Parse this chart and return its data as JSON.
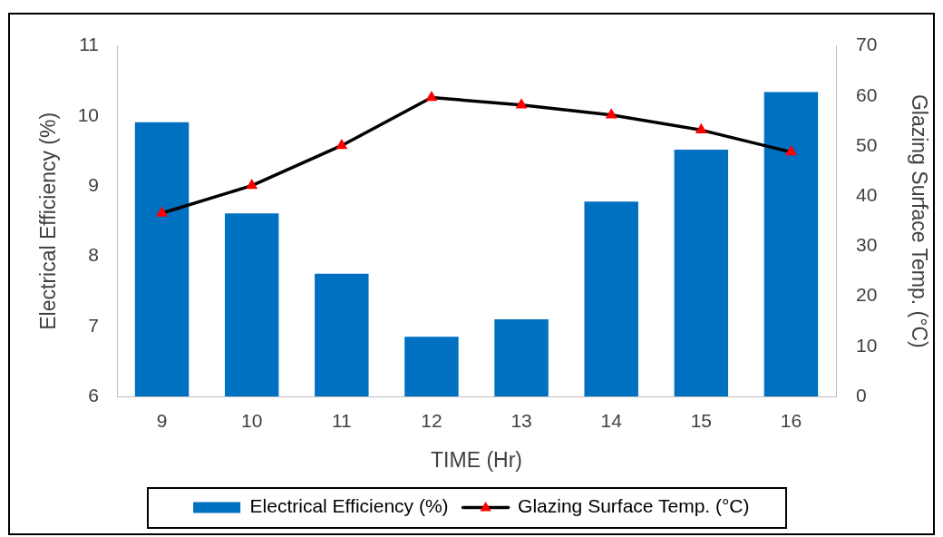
{
  "chart_data": {
    "type": "bar",
    "xlabel": "TIME (Hr)",
    "ylabel": "Electrical Efficiency (%)",
    "y2label": "Glazing Surface Temp. (°C)",
    "categories": [
      "9",
      "10",
      "11",
      "12",
      "13",
      "14",
      "15",
      "16"
    ],
    "series": [
      {
        "name": "Electrical Efficiency (%)",
        "color": "#0070c0",
        "values": [
          9.91,
          8.61,
          7.75,
          6.85,
          7.1,
          8.78,
          9.52,
          10.34
        ]
      },
      {
        "name": "Glazing Surface Temp. (°C)",
        "type": "line",
        "axis": "y2",
        "color": "#000000",
        "colors": [
          "#ff0000",
          "#ff0000",
          "#ff0000",
          "#ff0000",
          "#ff0000",
          "#ff0000",
          "#ff0000",
          "#ff0000"
        ],
        "values": [
          36.6,
          42.1,
          50.1,
          59.7,
          58.2,
          56.2,
          53.2,
          48.8
        ]
      }
    ],
    "ylim": [
      6,
      11
    ],
    "yticks": [
      6,
      7,
      8,
      9,
      10,
      11
    ],
    "y2lim": [
      0,
      70
    ],
    "y2ticks": [
      0,
      10,
      20,
      30,
      40,
      50,
      60,
      70
    ],
    "legend": "bottom",
    "marker": "triangle"
  }
}
